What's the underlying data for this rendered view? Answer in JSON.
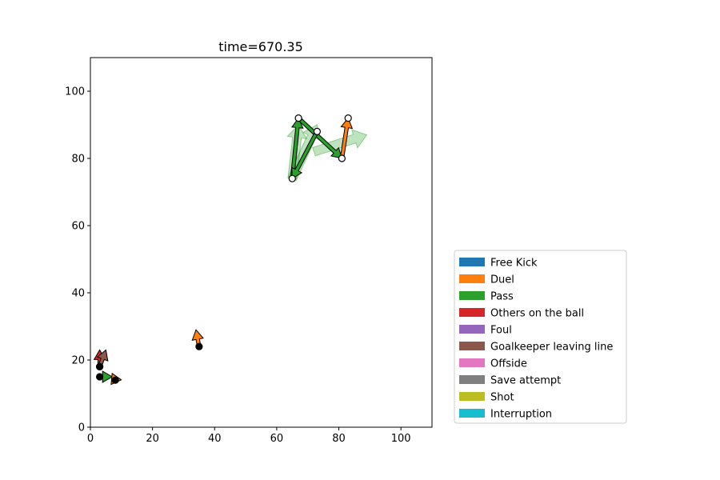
{
  "chart_data": {
    "type": "scatter",
    "title": "time=670.35",
    "xlabel": "",
    "ylabel": "",
    "xlim": [
      0,
      110
    ],
    "ylim": [
      0,
      110
    ],
    "x_ticks": [
      0,
      20,
      40,
      60,
      80,
      100
    ],
    "y_ticks": [
      0,
      20,
      40,
      60,
      80,
      100
    ],
    "grid": false,
    "legend_position": "lower-right, outside plot",
    "legend": [
      {
        "label": "Free Kick",
        "color": "#1f77b4"
      },
      {
        "label": "Duel",
        "color": "#ff7f0e"
      },
      {
        "label": "Pass",
        "color": "#2ca02c"
      },
      {
        "label": "Others on the ball",
        "color": "#d62728"
      },
      {
        "label": "Foul",
        "color": "#9467bd"
      },
      {
        "label": "Goalkeeper leaving line",
        "color": "#8c564b"
      },
      {
        "label": "Offside",
        "color": "#e377c2"
      },
      {
        "label": "Save attempt",
        "color": "#7f7f7f"
      },
      {
        "label": "Shot",
        "color": "#bcbd22"
      },
      {
        "label": "Interruption",
        "color": "#17becf"
      }
    ],
    "events": [
      {
        "type": "Pass",
        "start": [
          65,
          74
        ],
        "end": [
          67,
          92
        ],
        "start_marker": "open",
        "faded": false
      },
      {
        "type": "Pass",
        "start": [
          67,
          92
        ],
        "end": [
          81,
          80
        ],
        "start_marker": "open",
        "faded": false
      },
      {
        "type": "Pass",
        "start": [
          73,
          88
        ],
        "end": [
          65,
          74
        ],
        "start_marker": "open",
        "faded": false
      },
      {
        "type": "Duel",
        "start": [
          81,
          80
        ],
        "end": [
          83,
          92
        ],
        "start_marker": "open",
        "faded": false
      },
      {
        "type": "Pass",
        "start": [
          65,
          74
        ],
        "end": [
          67,
          90
        ],
        "start_marker": "none",
        "faded": true
      },
      {
        "type": "Pass",
        "start": [
          65,
          74
        ],
        "end": [
          73,
          90
        ],
        "start_marker": "none",
        "faded": true
      },
      {
        "type": "Pass",
        "start": [
          72,
          82
        ],
        "end": [
          89,
          87
        ],
        "start_marker": "none",
        "faded": true
      },
      {
        "type": "Duel",
        "start": [
          35,
          24
        ],
        "end": [
          34,
          29
        ],
        "start_marker": "filled",
        "faded": false
      },
      {
        "type": "Others on the ball",
        "start": [
          3,
          18
        ],
        "end": [
          3,
          23
        ],
        "start_marker": "filled",
        "faded": false
      },
      {
        "type": "Goalkeeper leaving line",
        "start": [
          3,
          18
        ],
        "end": [
          5,
          23
        ],
        "start_marker": "filled",
        "faded": false
      },
      {
        "type": "Pass",
        "start": [
          3,
          15
        ],
        "end": [
          7,
          15
        ],
        "start_marker": "filled",
        "faded": false
      },
      {
        "type": "Duel",
        "start": [
          8,
          14
        ],
        "end": [
          7,
          16
        ],
        "start_marker": "filled",
        "faded": false
      }
    ]
  }
}
